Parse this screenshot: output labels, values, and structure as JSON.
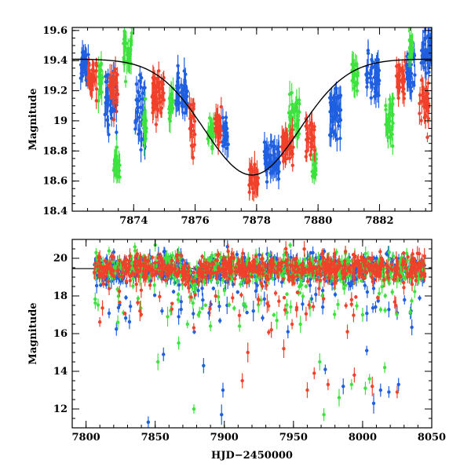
{
  "chart_data": [
    {
      "type": "scatter",
      "panel": "top",
      "title": "",
      "xlabel": "",
      "ylabel": "Magnitude",
      "xlim": [
        7872.0,
        7883.7
      ],
      "ylim": [
        19.62,
        18.4
      ],
      "y_inverted": true,
      "x_major_ticks": [
        7874,
        7876,
        7878,
        7880,
        7882
      ],
      "x_minor_step": 0.5,
      "y_major_ticks": [
        18.4,
        18.6,
        18.8,
        19.0,
        19.2,
        19.4,
        19.6
      ],
      "y_tick_labels": [
        "18.4",
        "18.6",
        "18.8",
        "19",
        "19.2",
        "19.4",
        "19.6"
      ],
      "y_minor_step": 0.05,
      "model_curve": {
        "color": "#000000",
        "baseline": 19.41,
        "peak": 18.64,
        "t_peak": 7877.85,
        "width_days": 1.55,
        "shape": "gaussian"
      },
      "series": [
        {
          "color": "#1f5fe0",
          "segments": [
            {
              "x": [
                7872.25,
                7872.55
              ],
              "center": 19.38,
              "spread": 0.06
            },
            {
              "x": [
                7873.05,
                7873.45
              ],
              "center": 19.15,
              "spread": 0.1
            },
            {
              "x": [
                7874.05,
                7874.4
              ],
              "center": 19.05,
              "spread": 0.1
            },
            {
              "x": [
                7875.35,
                7875.75
              ],
              "center": 19.18,
              "spread": 0.07
            },
            {
              "x": [
                7876.9,
                7877.1
              ],
              "center": 18.92,
              "spread": 0.05
            },
            {
              "x": [
                7878.25,
                7878.75
              ],
              "center": 18.74,
              "spread": 0.06
            },
            {
              "x": [
                7880.35,
                7880.75
              ],
              "center": 19.05,
              "spread": 0.08
            },
            {
              "x": [
                7881.55,
                7882.0
              ],
              "center": 19.28,
              "spread": 0.07
            },
            {
              "x": [
                7882.85,
                7883.15
              ],
              "center": 19.32,
              "spread": 0.08
            },
            {
              "x": [
                7883.35,
                7883.7
              ],
              "center": 19.45,
              "spread": 0.07
            }
          ]
        },
        {
          "color": "#3ee23e",
          "segments": [
            {
              "x": [
                7872.85,
                7873.0
              ],
              "center": 19.28,
              "spread": 0.07
            },
            {
              "x": [
                7873.35,
                7873.55
              ],
              "center": 18.7,
              "spread": 0.05
            },
            {
              "x": [
                7873.65,
                7873.95
              ],
              "center": 19.45,
              "spread": 0.09
            },
            {
              "x": [
                7874.3,
                7874.45
              ],
              "center": 18.95,
              "spread": 0.07
            },
            {
              "x": [
                7875.15,
                7875.3
              ],
              "center": 19.1,
              "spread": 0.06
            },
            {
              "x": [
                7876.4,
                7876.6
              ],
              "center": 18.92,
              "spread": 0.05
            },
            {
              "x": [
                7879.05,
                7879.4
              ],
              "center": 19.02,
              "spread": 0.08
            },
            {
              "x": [
                7879.8,
                7879.95
              ],
              "center": 18.7,
              "spread": 0.05
            },
            {
              "x": [
                7881.1,
                7881.3
              ],
              "center": 19.32,
              "spread": 0.07
            },
            {
              "x": [
                7882.2,
                7882.45
              ],
              "center": 19.0,
              "spread": 0.08
            },
            {
              "x": [
                7882.95,
                7883.1
              ],
              "center": 19.5,
              "spread": 0.06
            }
          ]
        },
        {
          "color": "#f0412b",
          "segments": [
            {
              "x": [
                7872.5,
                7872.8
              ],
              "center": 19.3,
              "spread": 0.06
            },
            {
              "x": [
                7873.2,
                7873.5
              ],
              "center": 19.2,
              "spread": 0.07
            },
            {
              "x": [
                7874.6,
                7875.0
              ],
              "center": 19.2,
              "spread": 0.1
            },
            {
              "x": [
                7875.8,
                7876.0
              ],
              "center": 19.0,
              "spread": 0.1
            },
            {
              "x": [
                7876.65,
                7876.85
              ],
              "center": 18.95,
              "spread": 0.06
            },
            {
              "x": [
                7877.75,
                7878.05
              ],
              "center": 18.62,
              "spread": 0.04
            },
            {
              "x": [
                7878.8,
                7879.2
              ],
              "center": 18.83,
              "spread": 0.05
            },
            {
              "x": [
                7879.6,
                7879.9
              ],
              "center": 18.9,
              "spread": 0.06
            },
            {
              "x": [
                7882.55,
                7882.85
              ],
              "center": 19.25,
              "spread": 0.06
            },
            {
              "x": [
                7883.3,
                7883.6
              ],
              "center": 19.1,
              "spread": 0.1
            }
          ]
        }
      ]
    },
    {
      "type": "scatter",
      "panel": "bottom",
      "title": "",
      "xlabel": "HJD−2450000",
      "ylabel": "Magnitude",
      "xlim": [
        7790,
        8050
      ],
      "ylim": [
        21.0,
        11.0
      ],
      "y_inverted": true,
      "x_major_ticks": [
        7800,
        7850,
        7900,
        7950,
        8000,
        8050
      ],
      "x_minor_step": 10,
      "y_major_ticks": [
        12,
        14,
        16,
        18,
        20
      ],
      "y_tick_labels": [
        "12",
        "14",
        "16",
        "18",
        "20"
      ],
      "y_minor_step": 0.5,
      "baseline_magnitude": 19.45,
      "data_x_range": [
        7806,
        8045
      ],
      "event_peak": {
        "t": 7878,
        "magnitude": 18.8
      },
      "series": [
        {
          "color": "#1f5fe0",
          "bright_outliers": [
            {
              "x": 7845,
              "y": 11.3
            },
            {
              "x": 7885,
              "y": 14.3
            },
            {
              "x": 7898,
              "y": 11.7
            },
            {
              "x": 7899,
              "y": 13.0
            },
            {
              "x": 7856,
              "y": 14.9
            },
            {
              "x": 8013,
              "y": 13.0
            },
            {
              "x": 8019,
              "y": 12.9
            },
            {
              "x": 8026,
              "y": 13.3
            },
            {
              "x": 8008,
              "y": 12.3
            },
            {
              "x": 7986,
              "y": 13.2
            },
            {
              "x": 7973,
              "y": 14.1
            },
            {
              "x": 8003,
              "y": 15.1
            },
            {
              "x": 7921,
              "y": 17.2
            },
            {
              "x": 7902,
              "y": 17.5
            },
            {
              "x": 7867,
              "y": 16.9
            },
            {
              "x": 7889,
              "y": 17.1
            },
            {
              "x": 8025,
              "y": 17.1
            },
            {
              "x": 8008,
              "y": 18.4
            },
            {
              "x": 8035,
              "y": 17.2
            },
            {
              "x": 7946,
              "y": 16.1
            }
          ]
        },
        {
          "color": "#3ee23e",
          "bright_outliers": [
            {
              "x": 7878,
              "y": 12.0
            },
            {
              "x": 7972,
              "y": 11.7
            },
            {
              "x": 7983,
              "y": 12.6
            },
            {
              "x": 7992,
              "y": 13.3
            },
            {
              "x": 8002,
              "y": 13.1
            },
            {
              "x": 8005,
              "y": 13.6
            },
            {
              "x": 8016,
              "y": 14.2
            },
            {
              "x": 7852,
              "y": 14.5
            },
            {
              "x": 7867,
              "y": 15.5
            },
            {
              "x": 7969,
              "y": 14.5
            },
            {
              "x": 7890,
              "y": 16.4
            },
            {
              "x": 7911,
              "y": 16.4
            },
            {
              "x": 7938,
              "y": 16.7
            },
            {
              "x": 7955,
              "y": 16.5
            },
            {
              "x": 7859,
              "y": 16.9
            },
            {
              "x": 7823,
              "y": 16.6
            },
            {
              "x": 7962,
              "y": 17.4
            },
            {
              "x": 8000,
              "y": 17.0
            }
          ]
        },
        {
          "color": "#f0412b",
          "bright_outliers": [
            {
              "x": 7913,
              "y": 13.5
            },
            {
              "x": 7960,
              "y": 13.0
            },
            {
              "x": 7975,
              "y": 13.3
            },
            {
              "x": 7994,
              "y": 13.8
            },
            {
              "x": 8007,
              "y": 13.2
            },
            {
              "x": 8025,
              "y": 12.9
            },
            {
              "x": 7965,
              "y": 13.9
            },
            {
              "x": 7943,
              "y": 15.2
            },
            {
              "x": 7917,
              "y": 15.0
            },
            {
              "x": 7989,
              "y": 16.1
            },
            {
              "x": 7949,
              "y": 16.5
            },
            {
              "x": 7839,
              "y": 17.2
            },
            {
              "x": 7931,
              "y": 17.6
            },
            {
              "x": 8024,
              "y": 17.5
            },
            {
              "x": 7992,
              "y": 17.8
            },
            {
              "x": 7862,
              "y": 17.3
            },
            {
              "x": 7934,
              "y": 16.2
            }
          ]
        }
      ]
    }
  ]
}
